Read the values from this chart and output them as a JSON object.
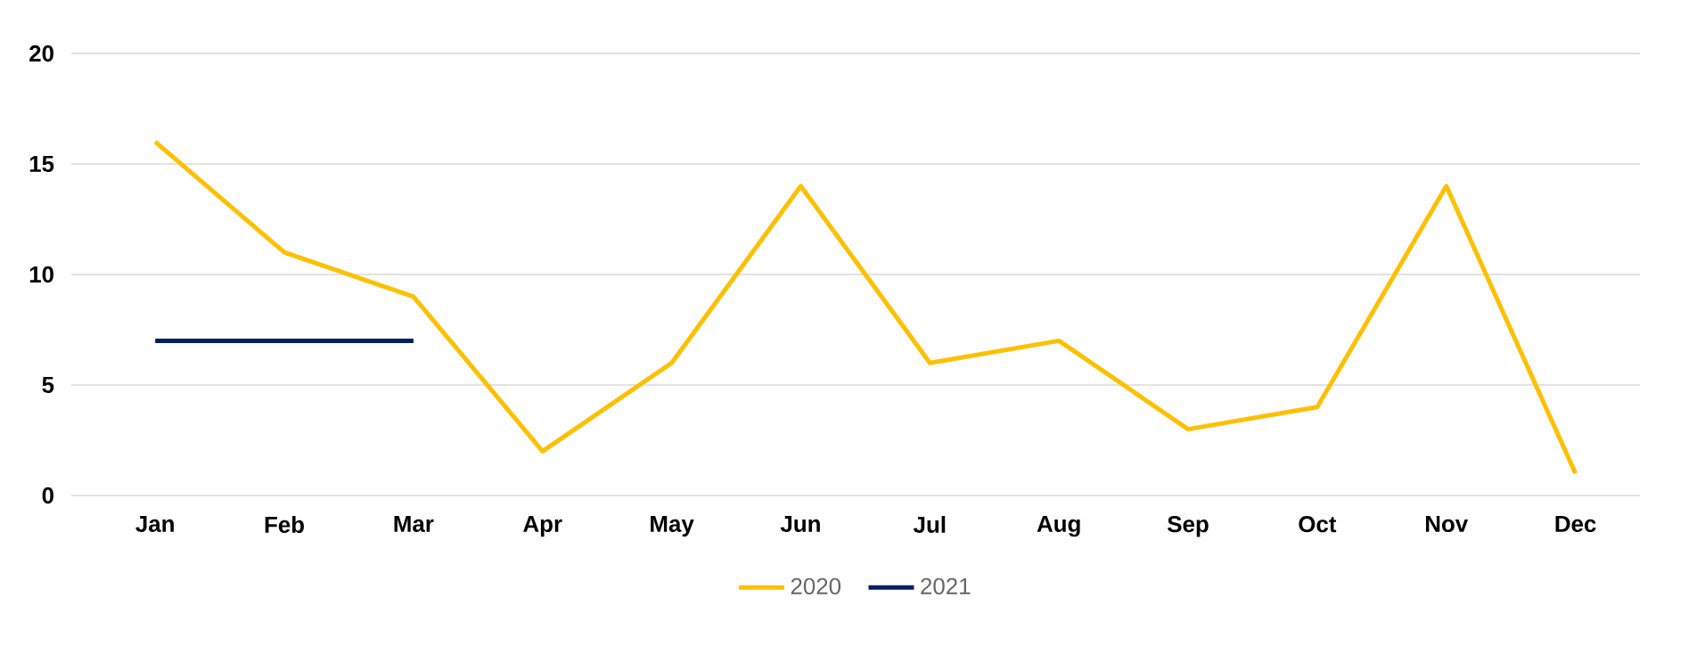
{
  "chart_data": {
    "type": "line",
    "categories": [
      "Jan",
      "Feb",
      "Mar",
      "Apr",
      "May",
      "Jun",
      "Jul",
      "Aug",
      "Sep",
      "Oct",
      "Nov",
      "Dec"
    ],
    "series": [
      {
        "name": "2020",
        "color": "#ffc000",
        "values": [
          16,
          11,
          9,
          2,
          6,
          14,
          6,
          7,
          3,
          4,
          14,
          1
        ]
      },
      {
        "name": "2021",
        "color": "#002060",
        "values": [
          7,
          7,
          7,
          null,
          null,
          null,
          null,
          null,
          null,
          null,
          null,
          null
        ]
      }
    ],
    "ylim": [
      0,
      20
    ],
    "yticks": [
      0,
      5,
      10,
      15,
      20
    ],
    "grid": "y",
    "legend": "bottom"
  }
}
